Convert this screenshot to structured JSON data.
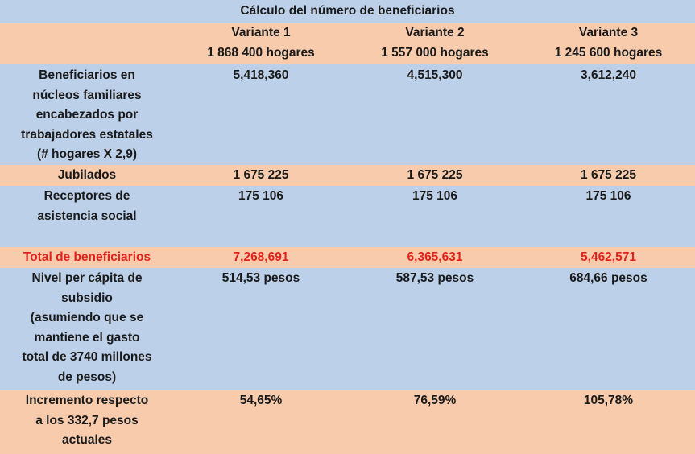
{
  "title": "Cálculo del número de beneficiarios",
  "columns": [
    {
      "name": "Variante 1",
      "households": "1 868 400 hogares"
    },
    {
      "name": "Variante 2",
      "households": "1 557 000 hogares"
    },
    {
      "name": "Variante 3",
      "households": "1 245 600 hogares"
    }
  ],
  "rows": [
    {
      "label": [
        "Beneficiarios en",
        "núcleos familiares",
        "encabezados por",
        "trabajadores estatales",
        "(# hogares X 2,9)"
      ],
      "values": [
        "5,418,360",
        "4,515,300",
        "3,612,240"
      ]
    },
    {
      "label": [
        "Jubilados"
      ],
      "values": [
        "1 675 225",
        "1 675 225",
        "1 675 225"
      ]
    },
    {
      "label": [
        "Receptores de",
        "asistencia social"
      ],
      "values": [
        "175 106",
        "175 106",
        "175 106"
      ]
    },
    {
      "label": [
        "Total de beneficiarios"
      ],
      "values": [
        "7,268,691",
        "6,365,631",
        "5,462,571"
      ]
    },
    {
      "label": [
        "Nivel per cápita de",
        "subsidio",
        "(asumiendo que se",
        "mantiene el gasto",
        "total de 3740 millones",
        "de pesos)"
      ],
      "values": [
        "514,53 pesos",
        "587,53 pesos",
        "684,66 pesos"
      ]
    },
    {
      "label": [
        "Incremento respecto",
        "a los 332,7 pesos",
        "actuales"
      ],
      "values": [
        "54,65%",
        "76,59%",
        "105,78%"
      ]
    }
  ],
  "colors": {
    "blue": "#bdd0e9",
    "peach": "#f7cbac",
    "total_text": "#e0241b"
  }
}
